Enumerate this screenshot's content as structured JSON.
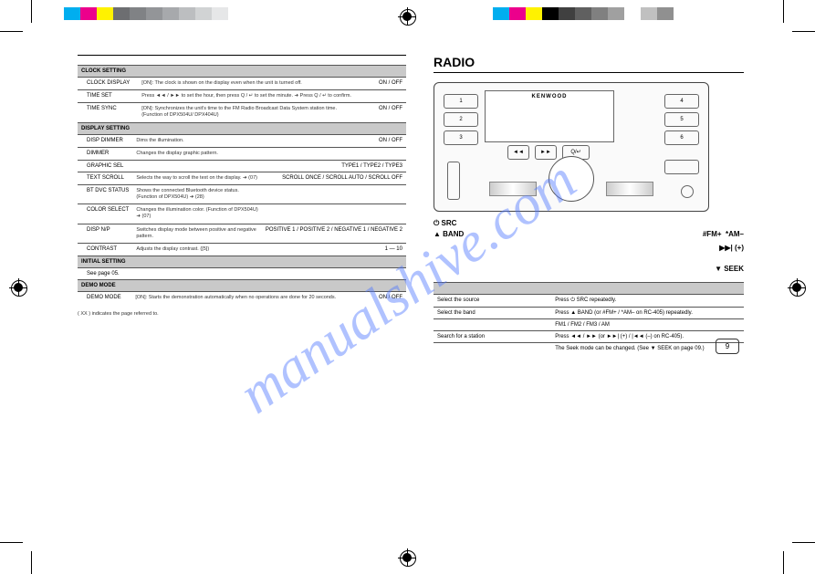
{
  "watermark": "manualshive.com",
  "colorbar": [
    "#00aeef",
    "#ec008c",
    "#fff200",
    "#6d6e71",
    "#808285",
    "#939598",
    "#a7a9ac",
    "#bcbec0",
    "#d1d3d4",
    "#e6e7e8",
    "#ffffff"
  ],
  "colorbar_right": [
    "#00aeef",
    "#ec008c",
    "#fff200",
    "#000000",
    "#404040",
    "#606060",
    "#808080",
    "#a0a0a0",
    "#ffffff",
    "#c0c0c0",
    "#909090"
  ],
  "left": {
    "top_rule": " ",
    "clock_header": "CLOCK SETTING",
    "clock_rows": [
      {
        "label": "CLOCK DISPLAY",
        "val": "ON / OFF",
        "desc": "[ON]: The clock is shown on the display even when the unit is turned off."
      },
      {
        "label": "TIME SET",
        "val": "",
        "desc": "Press ◄◄ / ►► to set the hour, then press Q / ↵ to set the minute. ➜ Press Q / ↵ to confirm."
      },
      {
        "label": "TIME SYNC",
        "val": "ON / OFF",
        "desc": "[ON]: Synchronizes the unit's time to the FM Radio Broadcast Data System station time.\n(Function of DPX504U/ DPX404U)"
      }
    ],
    "display_header": "DISPLAY SETTING",
    "display_rows": [
      {
        "label": "DISP DIMMER",
        "val": "ON / OFF",
        "desc": "Dims the illumination."
      },
      {
        "label": "DIMMER",
        "val": "",
        "desc": "Changes the display graphic pattern."
      },
      {
        "label": "GRAPHIC SEL",
        "val": "TYPE1 / TYPE2 / TYPE3",
        "desc": ""
      },
      {
        "label": "TEXT SCROLL",
        "val": "SCROLL ONCE / SCROLL AUTO / SCROLL OFF",
        "desc": "Selects the way to scroll the text on the display. ➜ (07)"
      },
      {
        "label": "BT DVC STATUS",
        "val": "",
        "desc": "Shows the connected Bluetooth device status. (Function of DPX504U) ➜ (28)"
      },
      {
        "label": "COLOR SELECT",
        "val": "",
        "desc": "Changes the illumination color. (Function of DPX504U) ➜ (07)"
      },
      {
        "label": "DISP N/P",
        "val": "POSITIVE 1 / POSITIVE 2 / NEGATIVE 1 / NEGATIVE 2",
        "desc": "Switches display mode between positive and negative pattern."
      },
      {
        "label": "CONTRAST",
        "val": "1 — 10",
        "desc": "Adjusts the display contrast. ([5])"
      }
    ],
    "initial_header": "INITIAL SETTING",
    "initial_rows": [
      {
        "label": "See page 05.",
        "val": "",
        "desc": ""
      }
    ],
    "demo_header": "DEMO MODE",
    "demo_rows": [
      {
        "label": "DEMO MODE",
        "val": "ON / OFF",
        "desc": "[ON]: Starts the demonstration automatically when no operations are done for 20 seconds."
      }
    ],
    "foot_line": "( XX ) indicates the page referred to."
  },
  "right": {
    "title": "RADIO",
    "brand": "KENWOOD",
    "preset_left": [
      "1",
      "2",
      "3"
    ],
    "preset_right": [
      "4",
      "5",
      "6"
    ],
    "labels": {
      "src": "⏻ SRC",
      "band": "▲ BAND",
      "fm": "#FM+",
      "am": "*AM–",
      "seek": "▼ SEEK",
      "ff": "▶▶| (+)"
    },
    "rows": [
      {
        "l": "Select the source",
        "r": "Press ⏻ SRC repeatedly."
      },
      {
        "l": "Select the band",
        "r": "Press ▲ BAND (or #FM+ / *AM– on RC-405) repeatedly."
      },
      {
        "l": "",
        "r": "FM1 / FM2 / FM3 / AM"
      },
      {
        "l": "Search for a station",
        "r": "Press ◄◄ / ►► (or ►►| (+) / |◄◄ (–) on RC-405)."
      },
      {
        "l": "",
        "r": "The Seek mode can be changed. (See ▼ SEEK on page 09.)"
      }
    ],
    "page_num": "9"
  }
}
